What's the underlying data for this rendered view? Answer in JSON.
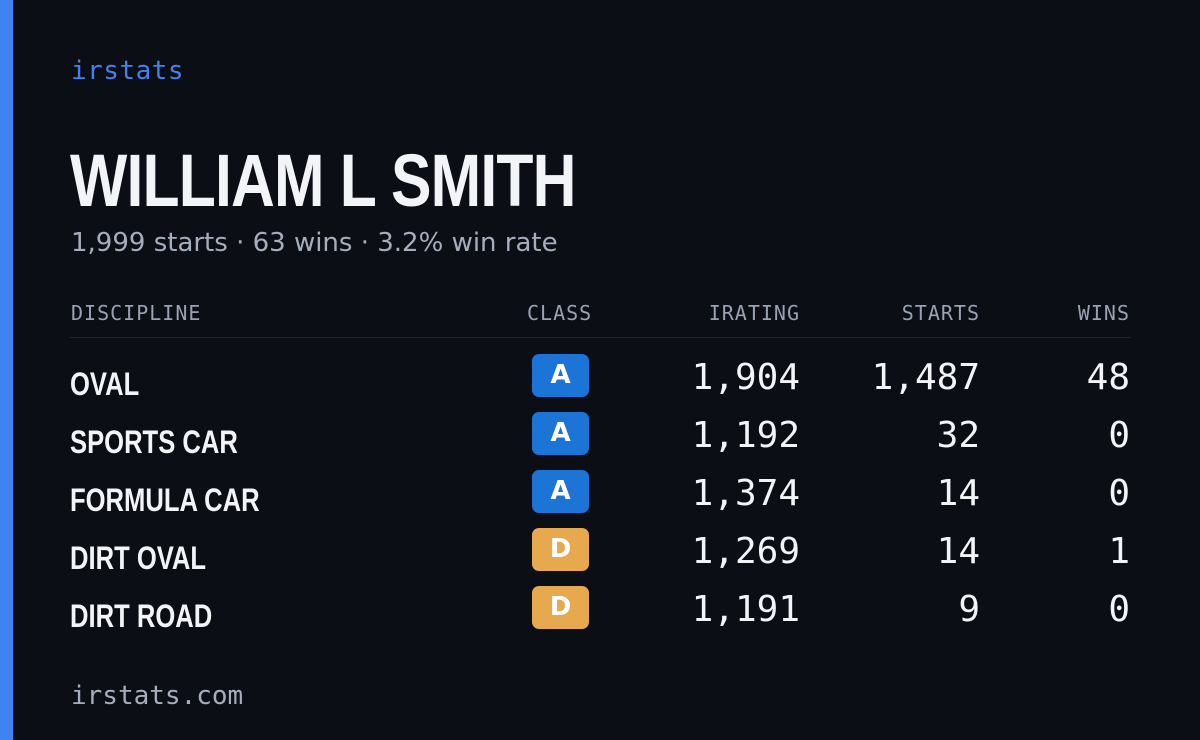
{
  "brand": "irstats",
  "player_name": "WILLIAM L SMITH",
  "summary": "1,999 starts · 63 wins · 3.2% win rate",
  "table": {
    "headers": {
      "discipline": "DISCIPLINE",
      "class": "CLASS",
      "irating": "IRATING",
      "starts": "STARTS",
      "wins": "WINS"
    },
    "rows": [
      {
        "discipline": "OVAL",
        "class": "A",
        "irating": "1,904",
        "starts": "1,487",
        "wins": "48"
      },
      {
        "discipline": "SPORTS CAR",
        "class": "A",
        "irating": "1,192",
        "starts": "32",
        "wins": "0"
      },
      {
        "discipline": "FORMULA CAR",
        "class": "A",
        "irating": "1,374",
        "starts": "14",
        "wins": "0"
      },
      {
        "discipline": "DIRT OVAL",
        "class": "D",
        "irating": "1,269",
        "starts": "14",
        "wins": "1"
      },
      {
        "discipline": "DIRT ROAD",
        "class": "D",
        "irating": "1,191",
        "starts": "9",
        "wins": "0"
      }
    ]
  },
  "footer": {
    "url": "irstats.com"
  },
  "colors": {
    "background": "#0b0e15",
    "accent": "#3f82f2",
    "class_a": "#1b74d6",
    "class_d": "#e7a94d",
    "text_primary": "#f3f4f8",
    "text_muted": "#a6adbd"
  }
}
